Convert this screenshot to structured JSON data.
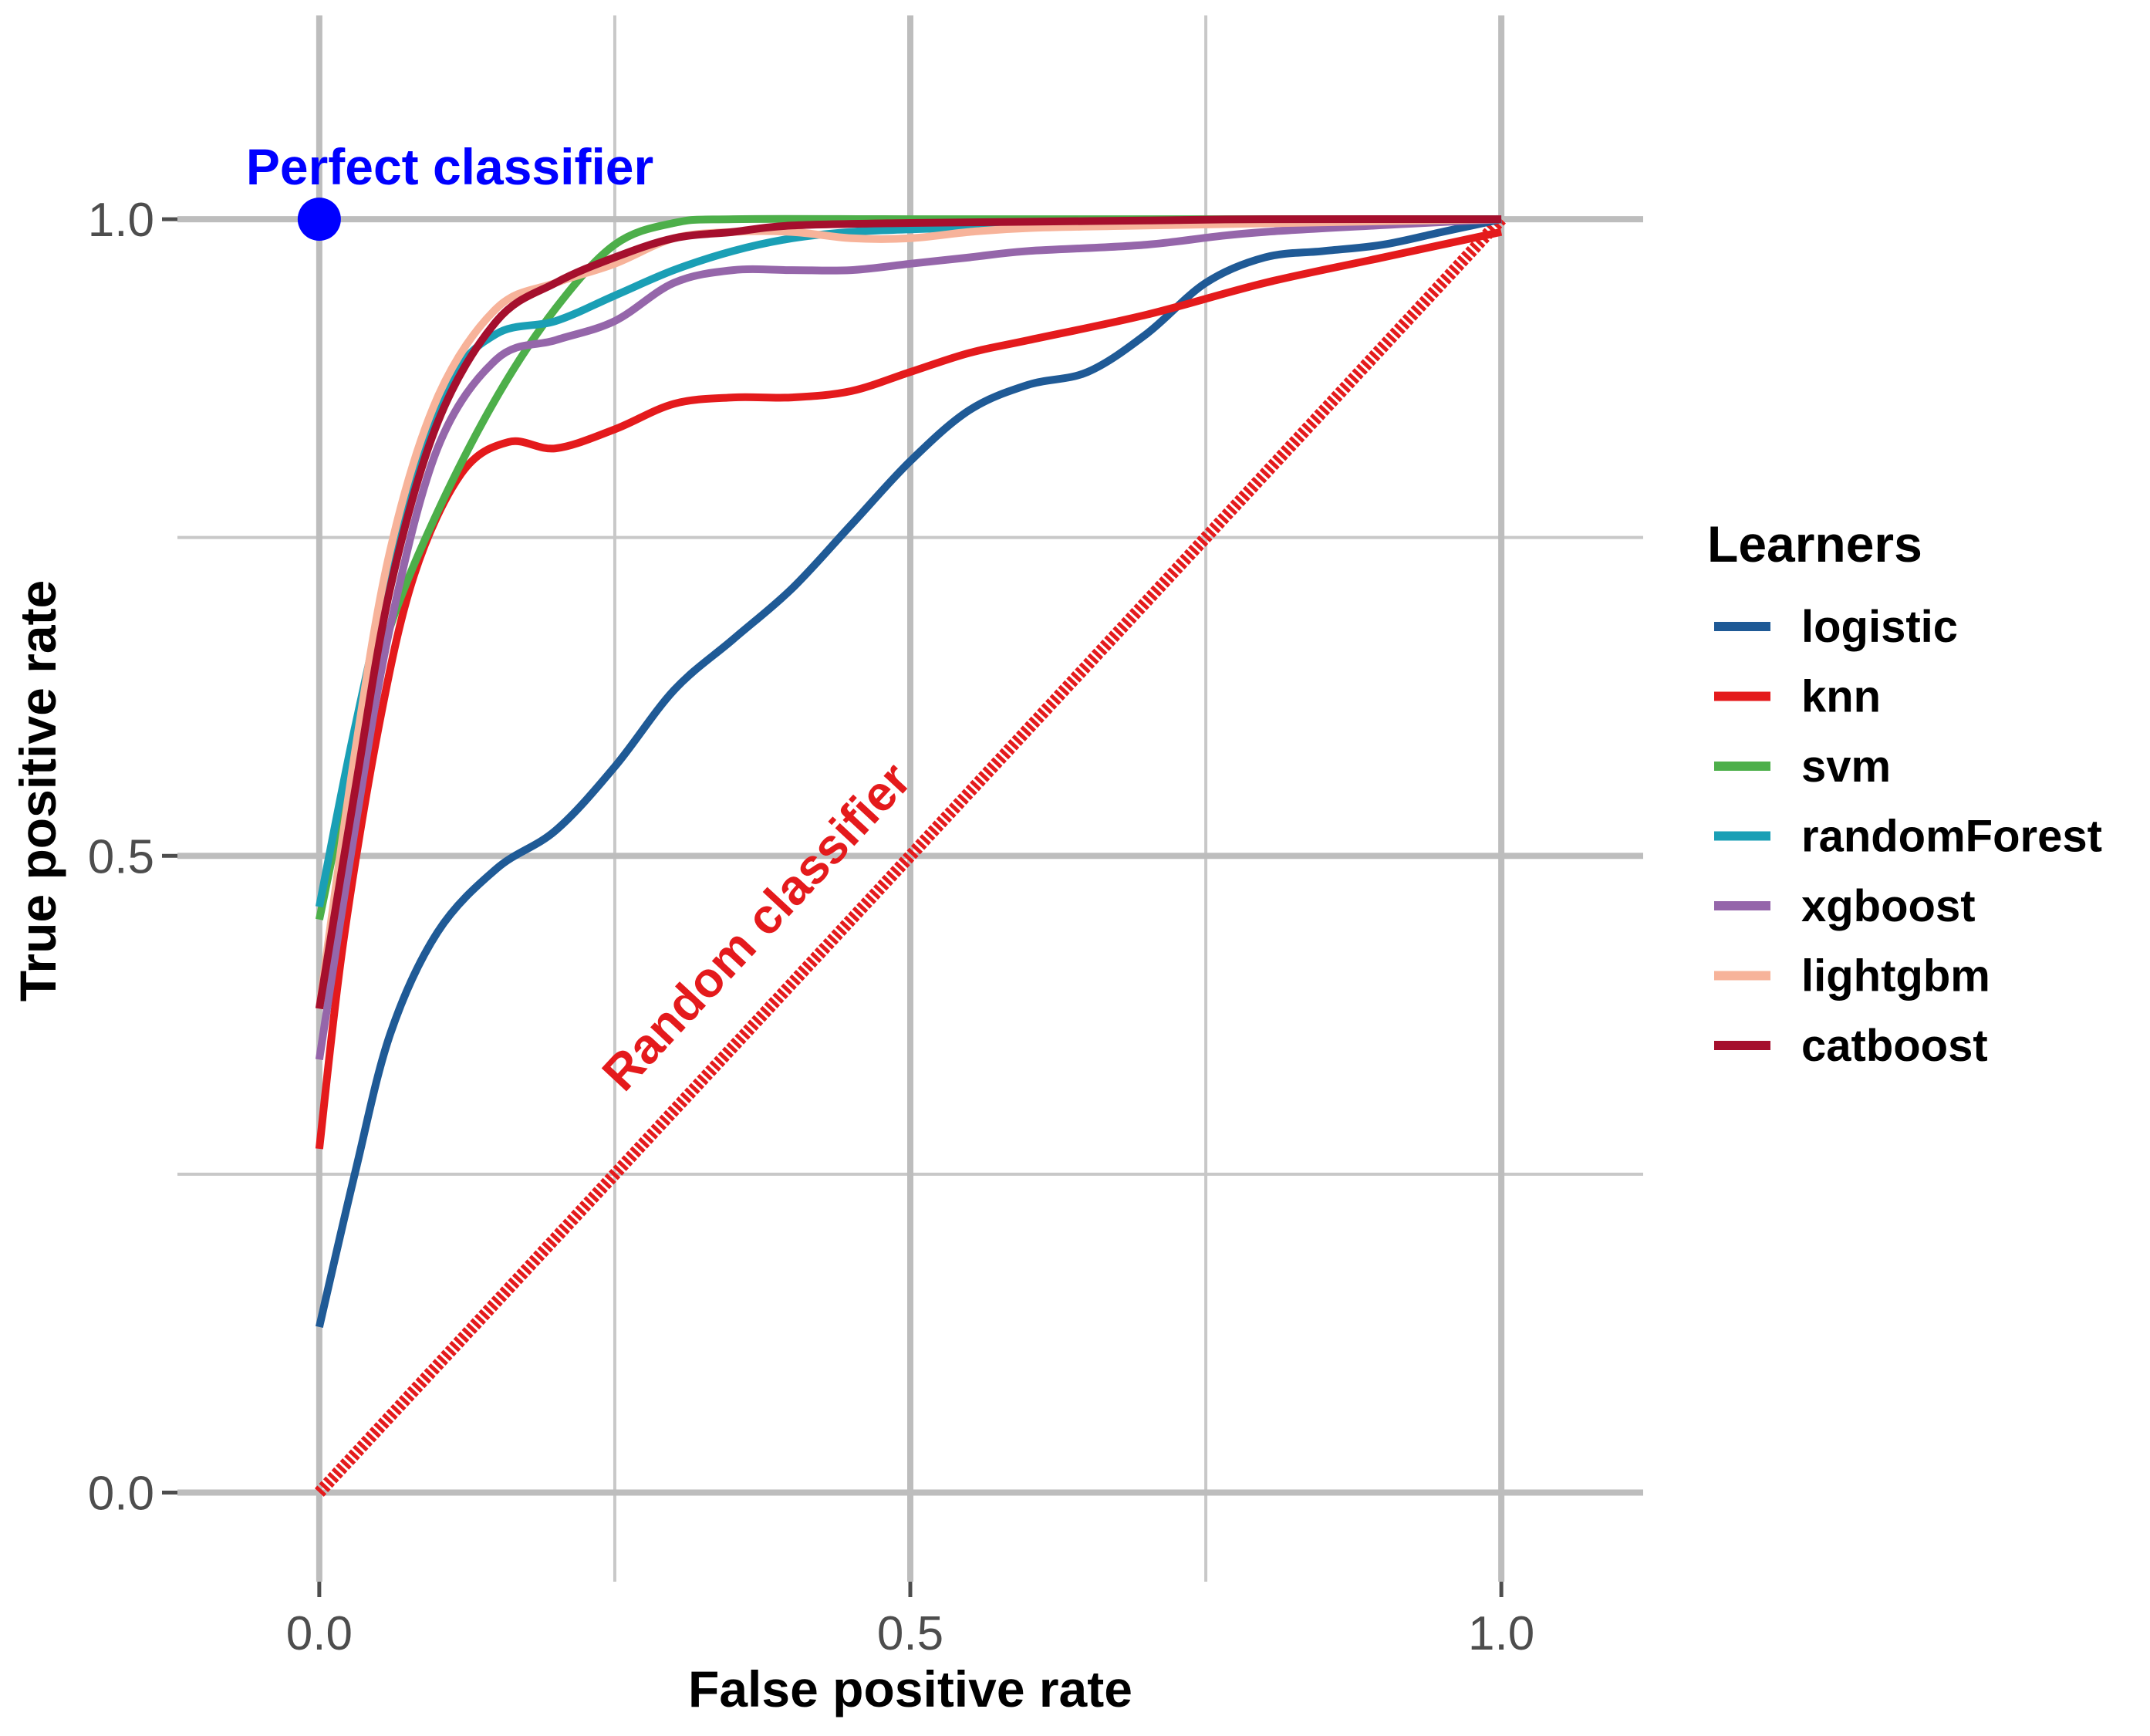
{
  "chart_data": {
    "type": "line",
    "xlabel": "False positive rate",
    "ylabel": "True positive rate",
    "xlim": [
      -0.12,
      1.12
    ],
    "ylim": [
      -0.07,
      1.16
    ],
    "x_ticks": [
      0.0,
      0.5,
      1.0
    ],
    "x_tick_labels": [
      "0.0",
      "0.5",
      "1.0"
    ],
    "y_ticks": [
      0.0,
      0.5,
      1.0
    ],
    "y_tick_labels": [
      "0.0",
      "0.5",
      "1.0"
    ],
    "grid": true,
    "legend": {
      "title": "Learners",
      "position": "right"
    },
    "series": [
      {
        "name": "logistic",
        "color": "#1f5a96",
        "points": [
          [
            0,
            0.13
          ],
          [
            0.03,
            0.25
          ],
          [
            0.06,
            0.36
          ],
          [
            0.1,
            0.44
          ],
          [
            0.15,
            0.49
          ],
          [
            0.2,
            0.52
          ],
          [
            0.25,
            0.57
          ],
          [
            0.3,
            0.63
          ],
          [
            0.35,
            0.67
          ],
          [
            0.4,
            0.71
          ],
          [
            0.45,
            0.76
          ],
          [
            0.5,
            0.81
          ],
          [
            0.55,
            0.85
          ],
          [
            0.6,
            0.87
          ],
          [
            0.65,
            0.88
          ],
          [
            0.7,
            0.91
          ],
          [
            0.75,
            0.95
          ],
          [
            0.8,
            0.97
          ],
          [
            0.85,
            0.975
          ],
          [
            0.9,
            0.98
          ],
          [
            0.95,
            0.99
          ],
          [
            1.0,
            1.0
          ]
        ]
      },
      {
        "name": "knn",
        "color": "#e41a1c",
        "points": [
          [
            0,
            0.27
          ],
          [
            0.02,
            0.43
          ],
          [
            0.05,
            0.6
          ],
          [
            0.08,
            0.72
          ],
          [
            0.12,
            0.8
          ],
          [
            0.16,
            0.825
          ],
          [
            0.2,
            0.82
          ],
          [
            0.25,
            0.835
          ],
          [
            0.3,
            0.855
          ],
          [
            0.35,
            0.86
          ],
          [
            0.4,
            0.86
          ],
          [
            0.45,
            0.865
          ],
          [
            0.5,
            0.88
          ],
          [
            0.55,
            0.895
          ],
          [
            0.6,
            0.905
          ],
          [
            0.7,
            0.925
          ],
          [
            0.8,
            0.95
          ],
          [
            0.9,
            0.97
          ],
          [
            1.0,
            0.99
          ]
        ]
      },
      {
        "name": "svm",
        "color": "#4daf4a",
        "points": [
          [
            0,
            0.45
          ],
          [
            0.03,
            0.58
          ],
          [
            0.06,
            0.68
          ],
          [
            0.1,
            0.77
          ],
          [
            0.15,
            0.86
          ],
          [
            0.2,
            0.93
          ],
          [
            0.25,
            0.98
          ],
          [
            0.3,
            0.997
          ],
          [
            0.35,
            1.0
          ],
          [
            0.5,
            1.0
          ],
          [
            0.7,
            1.0
          ],
          [
            1.0,
            1.0
          ]
        ]
      },
      {
        "name": "randomForest",
        "color": "#1a9fb5",
        "points": [
          [
            0,
            0.46
          ],
          [
            0.03,
            0.6
          ],
          [
            0.07,
            0.76
          ],
          [
            0.11,
            0.87
          ],
          [
            0.15,
            0.91
          ],
          [
            0.2,
            0.92
          ],
          [
            0.25,
            0.94
          ],
          [
            0.3,
            0.96
          ],
          [
            0.35,
            0.975
          ],
          [
            0.4,
            0.985
          ],
          [
            0.45,
            0.99
          ],
          [
            0.5,
            0.992
          ],
          [
            0.6,
            0.995
          ],
          [
            0.7,
            0.997
          ],
          [
            0.8,
            0.998
          ],
          [
            1.0,
            1.0
          ]
        ]
      },
      {
        "name": "xgboost",
        "color": "#9566aa",
        "points": [
          [
            0,
            0.34
          ],
          [
            0.03,
            0.52
          ],
          [
            0.06,
            0.68
          ],
          [
            0.1,
            0.82
          ],
          [
            0.15,
            0.89
          ],
          [
            0.2,
            0.905
          ],
          [
            0.25,
            0.92
          ],
          [
            0.3,
            0.95
          ],
          [
            0.35,
            0.96
          ],
          [
            0.4,
            0.96
          ],
          [
            0.45,
            0.96
          ],
          [
            0.5,
            0.965
          ],
          [
            0.55,
            0.97
          ],
          [
            0.6,
            0.975
          ],
          [
            0.7,
            0.98
          ],
          [
            0.8,
            0.99
          ],
          [
            1.0,
            1.0
          ]
        ]
      },
      {
        "name": "lightgbm",
        "color": "#f7b39a",
        "points": [
          [
            0,
            0.38
          ],
          [
            0.03,
            0.58
          ],
          [
            0.06,
            0.74
          ],
          [
            0.1,
            0.86
          ],
          [
            0.15,
            0.93
          ],
          [
            0.2,
            0.95
          ],
          [
            0.25,
            0.965
          ],
          [
            0.3,
            0.985
          ],
          [
            0.35,
            0.99
          ],
          [
            0.4,
            0.99
          ],
          [
            0.45,
            0.985
          ],
          [
            0.5,
            0.985
          ],
          [
            0.55,
            0.99
          ],
          [
            0.6,
            0.993
          ],
          [
            0.7,
            0.995
          ],
          [
            1.0,
            1.0
          ]
        ]
      },
      {
        "name": "catboost",
        "color": "#a50f2d",
        "points": [
          [
            0,
            0.38
          ],
          [
            0.03,
            0.55
          ],
          [
            0.06,
            0.71
          ],
          [
            0.1,
            0.84
          ],
          [
            0.15,
            0.92
          ],
          [
            0.2,
            0.95
          ],
          [
            0.25,
            0.97
          ],
          [
            0.3,
            0.985
          ],
          [
            0.35,
            0.99
          ],
          [
            0.4,
            0.995
          ],
          [
            0.5,
            0.997
          ],
          [
            0.6,
            0.998
          ],
          [
            0.7,
            0.999
          ],
          [
            0.8,
            1.0
          ],
          [
            1.0,
            1.0
          ]
        ]
      }
    ],
    "reference_line": {
      "label": "Random classifier",
      "color": "#e41a1c",
      "from": [
        0,
        0
      ],
      "to": [
        1,
        1
      ]
    },
    "reference_point": {
      "label": "Perfect classifier",
      "color": "#0000ff",
      "point": [
        0,
        1
      ]
    }
  }
}
